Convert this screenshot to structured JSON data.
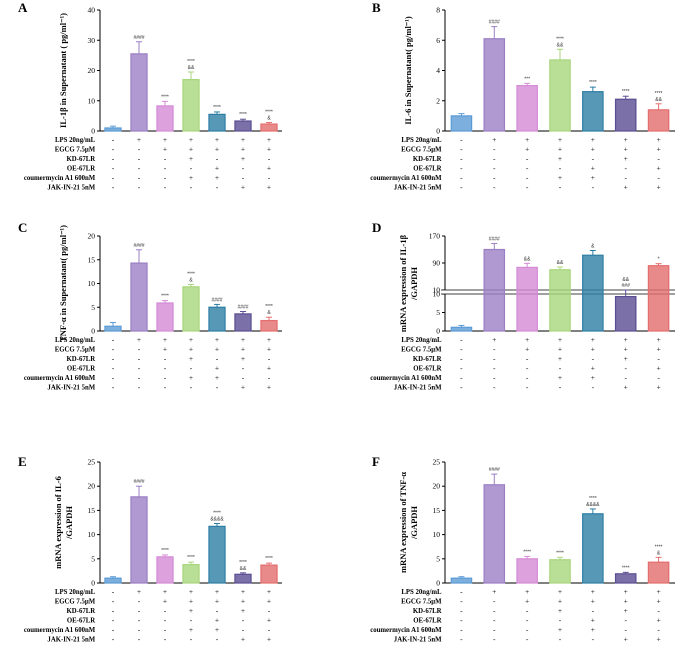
{
  "figure": {
    "colors": {
      "blue": "#5b9bd5",
      "purple": "#9b7fc4",
      "pink": "#d58ad6",
      "green": "#a8d67c",
      "teal": "#2d7ea4",
      "navy": "#5a4d92",
      "red": "#e46d6d"
    },
    "condition_rows": [
      {
        "label": "LPS 20ng/mL",
        "marks": [
          "-",
          "+",
          "+",
          "+",
          "+",
          "+",
          "+"
        ]
      },
      {
        "label": "EGCG 7.5μM",
        "marks": [
          "-",
          "-",
          "+",
          "+",
          "+",
          "+",
          "+"
        ]
      },
      {
        "label": "KD-67LR",
        "marks": [
          "-",
          "-",
          "-",
          "+",
          "-",
          "+",
          "-"
        ]
      },
      {
        "label": "OE-67LR",
        "marks": [
          "-",
          "-",
          "-",
          "-",
          "+",
          "-",
          "+"
        ]
      },
      {
        "label": "coumermycin A1 600nM",
        "marks": [
          "-",
          "-",
          "-",
          "+",
          "+",
          "-",
          "-"
        ]
      },
      {
        "label": "JAK-IN-21 5nM",
        "marks": [
          "-",
          "-",
          "-",
          "-",
          "-",
          "+",
          "+"
        ]
      }
    ]
  },
  "chart_data": [
    {
      "panel": "A",
      "type": "bar",
      "ylabel": "IL-1β in Supernatant ( pg/ml⁻¹)",
      "ylim": [
        0,
        40
      ],
      "yticks": [
        "0",
        "10",
        "20",
        "30",
        "40"
      ],
      "values": [
        1.0,
        25.5,
        8.3,
        17.0,
        5.5,
        3.3,
        2.3
      ],
      "errors": [
        0.6,
        4.0,
        1.5,
        2.5,
        0.8,
        0.6,
        0.5
      ],
      "colors": [
        "blue",
        "purple",
        "pink",
        "green",
        "teal",
        "navy",
        "red"
      ],
      "sig": [
        "",
        "####",
        "****",
        "****\n&&",
        "****",
        "****",
        "****\n&"
      ]
    },
    {
      "panel": "B",
      "type": "bar",
      "ylabel": "IL-6 in Supernatant( pg/ml⁻¹)",
      "ylim": [
        0,
        8
      ],
      "yticks": [
        "0",
        "2",
        "4",
        "6",
        "8"
      ],
      "values": [
        1.0,
        6.1,
        3.0,
        4.7,
        2.6,
        2.1,
        1.4
      ],
      "errors": [
        0.15,
        0.8,
        0.15,
        0.7,
        0.3,
        0.2,
        0.4
      ],
      "colors": [
        "blue",
        "purple",
        "pink",
        "green",
        "teal",
        "navy",
        "red"
      ],
      "sig": [
        "",
        "####",
        "***",
        "****\n&&",
        "****",
        "****",
        "****\n&&"
      ]
    },
    {
      "panel": "C",
      "type": "bar",
      "ylabel": "TNF-α in Supernatant( pg/ml⁻¹)",
      "ylim": [
        0,
        20
      ],
      "yticks": [
        "0",
        "5",
        "10",
        "15",
        "20"
      ],
      "values": [
        1.0,
        14.3,
        5.9,
        9.3,
        5.0,
        3.6,
        2.2
      ],
      "errors": [
        0.8,
        2.8,
        0.5,
        0.5,
        0.6,
        0.5,
        0.7
      ],
      "colors": [
        "blue",
        "purple",
        "pink",
        "green",
        "teal",
        "navy",
        "red"
      ],
      "sig": [
        "",
        "####",
        "****",
        "****\n&",
        "####",
        "####",
        "****\n&"
      ]
    },
    {
      "panel": "D",
      "type": "bar",
      "broken_axis": true,
      "ylabel": "mRNA expression of  IL-1β\n/GAPDH",
      "yticks_upper": [
        "10",
        "90",
        "170"
      ],
      "yticks_lower": [
        "0",
        "5",
        "10"
      ],
      "values": [
        1.0,
        130.0,
        77.0,
        70.0,
        113.0,
        9.3,
        82.0
      ],
      "errors": [
        0.5,
        18.0,
        12.0,
        8.0,
        14.0,
        0.8,
        6.0
      ],
      "colors": [
        "blue",
        "purple",
        "pink",
        "green",
        "teal",
        "navy",
        "red"
      ],
      "sig": [
        "",
        "####",
        "&&",
        "&&",
        "&",
        "&&\n###",
        "*"
      ]
    },
    {
      "panel": "E",
      "type": "bar",
      "ylabel": "mRNA expression of IL-6\n/GAPDH",
      "ylim": [
        0,
        25
      ],
      "yticks": [
        "0",
        "5",
        "10",
        "15",
        "20",
        "25"
      ],
      "values": [
        1.0,
        17.8,
        5.4,
        3.8,
        11.7,
        1.8,
        3.7
      ],
      "errors": [
        0.3,
        2.2,
        0.4,
        0.5,
        0.6,
        0.3,
        0.4
      ],
      "colors": [
        "blue",
        "purple",
        "pink",
        "green",
        "teal",
        "navy",
        "red"
      ],
      "sig": [
        "",
        "####",
        "****",
        "****",
        "****\n&&&&",
        "****\n&&",
        "****"
      ]
    },
    {
      "panel": "F",
      "type": "bar",
      "ylabel": "mRNA expression of  TNF-α\n/GAPDH",
      "ylim": [
        0,
        25
      ],
      "yticks": [
        "0",
        "5",
        "10",
        "15",
        "20",
        "25"
      ],
      "values": [
        1.0,
        20.3,
        5.0,
        4.8,
        14.3,
        1.9,
        4.3
      ],
      "errors": [
        0.3,
        2.2,
        0.5,
        0.5,
        1.0,
        0.3,
        1.0
      ],
      "colors": [
        "blue",
        "purple",
        "pink",
        "green",
        "teal",
        "navy",
        "red"
      ],
      "sig": [
        "",
        "####",
        "****",
        "****",
        "****\n&&&&",
        "****",
        "****\n&"
      ]
    }
  ]
}
